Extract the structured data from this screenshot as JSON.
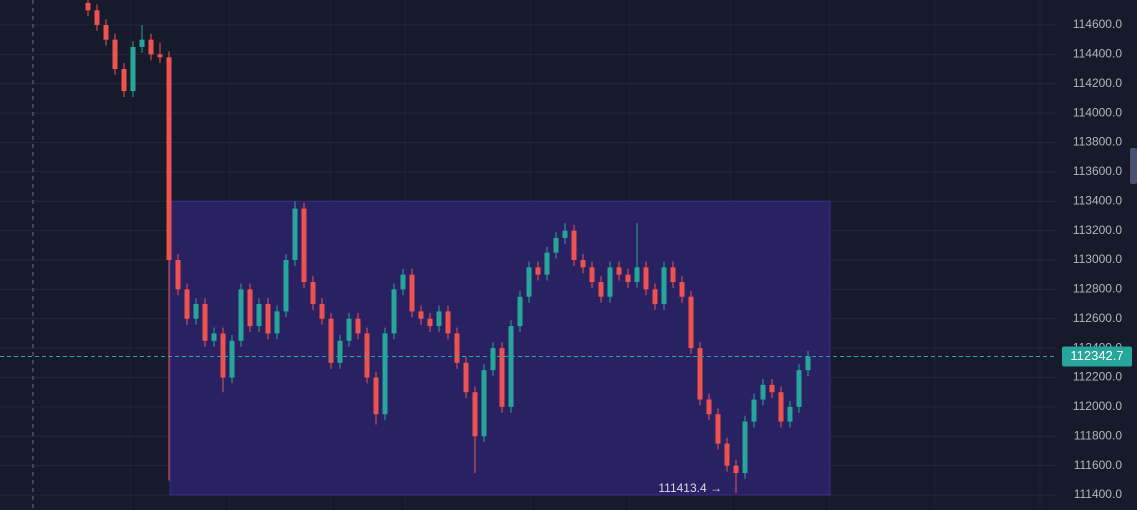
{
  "chart_data": {
    "type": "candlestick",
    "up_color": "#26a69a",
    "down_color": "#ef5350",
    "ylim": [
      111298,
      114770
    ],
    "yticks": [
      {
        "value": 114600,
        "label": "114600.0"
      },
      {
        "value": 114400,
        "label": "114400.0"
      },
      {
        "value": 114200,
        "label": "114200.0"
      },
      {
        "value": 114000,
        "label": "114000.0"
      },
      {
        "value": 113800,
        "label": "113800.0"
      },
      {
        "value": 113600,
        "label": "113600.0"
      },
      {
        "value": 113400,
        "label": "113400.0"
      },
      {
        "value": 113200,
        "label": "113200.0"
      },
      {
        "value": 113000,
        "label": "113000.0"
      },
      {
        "value": 112800,
        "label": "112800.0"
      },
      {
        "value": 112600,
        "label": "112600.0"
      },
      {
        "value": 112400,
        "label": "112400.0"
      },
      {
        "value": 112200,
        "label": "112200.0"
      },
      {
        "value": 112000,
        "label": "112000.0"
      },
      {
        "value": 111800,
        "label": "111800.0"
      },
      {
        "value": 111600,
        "label": "111600.0"
      },
      {
        "value": 111400,
        "label": "111400.0"
      }
    ],
    "grid": true,
    "box": {
      "top": 113400,
      "bottom": 111400,
      "color": "#2a2163"
    },
    "last_price": {
      "value": 112342.7,
      "label": "112342.7"
    },
    "low_label": {
      "value": 111413.4,
      "label": "111413.4 →"
    },
    "candles": [
      [
        114750,
        114790,
        114660,
        114700
      ],
      [
        114700,
        114740,
        114560,
        114600
      ],
      [
        114600,
        114640,
        114460,
        114500
      ],
      [
        114500,
        114540,
        114260,
        114300
      ],
      [
        114300,
        114340,
        114110,
        114150
      ],
      [
        114150,
        114490,
        114110,
        114450
      ],
      [
        114450,
        114600,
        114410,
        114500
      ],
      [
        114500,
        114540,
        114360,
        114400
      ],
      [
        114400,
        114480,
        114340,
        114380
      ],
      [
        114380,
        114420,
        111500,
        113000
      ],
      [
        113000,
        113040,
        112760,
        112800
      ],
      [
        112800,
        112840,
        112560,
        112600
      ],
      [
        112600,
        112740,
        112560,
        112700
      ],
      [
        112700,
        112740,
        112410,
        112450
      ],
      [
        112450,
        112540,
        112410,
        112500
      ],
      [
        112500,
        112540,
        112100,
        112200
      ],
      [
        112200,
        112490,
        112160,
        112450
      ],
      [
        112450,
        112840,
        112410,
        112800
      ],
      [
        112800,
        112840,
        112510,
        112550
      ],
      [
        112550,
        112740,
        112510,
        112700
      ],
      [
        112700,
        112740,
        112460,
        112500
      ],
      [
        112500,
        112690,
        112460,
        112650
      ],
      [
        112650,
        113040,
        112610,
        113000
      ],
      [
        113000,
        113400,
        112960,
        113350
      ],
      [
        113350,
        113390,
        112810,
        112850
      ],
      [
        112850,
        112890,
        112660,
        112700
      ],
      [
        112700,
        112740,
        112560,
        112600
      ],
      [
        112600,
        112640,
        112260,
        112300
      ],
      [
        112300,
        112490,
        112260,
        112450
      ],
      [
        112450,
        112640,
        112410,
        112600
      ],
      [
        112600,
        112640,
        112460,
        112500
      ],
      [
        112500,
        112540,
        112160,
        112200
      ],
      [
        112200,
        112240,
        111880,
        111950
      ],
      [
        111950,
        112540,
        111910,
        112500
      ],
      [
        112500,
        112840,
        112460,
        112800
      ],
      [
        112800,
        112940,
        112760,
        112900
      ],
      [
        112900,
        112940,
        112610,
        112650
      ],
      [
        112650,
        112690,
        112560,
        112600
      ],
      [
        112600,
        112640,
        112510,
        112550
      ],
      [
        112550,
        112690,
        112510,
        112650
      ],
      [
        112650,
        112690,
        112460,
        112500
      ],
      [
        112500,
        112540,
        112260,
        112300
      ],
      [
        112300,
        112340,
        112060,
        112100
      ],
      [
        112100,
        112140,
        111550,
        111800
      ],
      [
        111800,
        112290,
        111760,
        112250
      ],
      [
        112250,
        112440,
        112210,
        112400
      ],
      [
        112400,
        112440,
        111960,
        112000
      ],
      [
        112000,
        112590,
        111960,
        112550
      ],
      [
        112550,
        112790,
        112510,
        112750
      ],
      [
        112750,
        112990,
        112710,
        112950
      ],
      [
        112950,
        112990,
        112860,
        112900
      ],
      [
        112900,
        113090,
        112860,
        113050
      ],
      [
        113050,
        113190,
        113010,
        113150
      ],
      [
        113150,
        113250,
        113110,
        113200
      ],
      [
        113200,
        113240,
        112960,
        113000
      ],
      [
        113000,
        113040,
        112910,
        112950
      ],
      [
        112950,
        112990,
        112810,
        112850
      ],
      [
        112850,
        112890,
        112710,
        112750
      ],
      [
        112750,
        112990,
        112710,
        112950
      ],
      [
        112950,
        112990,
        112860,
        112900
      ],
      [
        112900,
        112940,
        112810,
        112850
      ],
      [
        112850,
        113250,
        112810,
        112950
      ],
      [
        112950,
        112990,
        112760,
        112800
      ],
      [
        112800,
        112840,
        112660,
        112700
      ],
      [
        112700,
        112990,
        112660,
        112950
      ],
      [
        112950,
        112990,
        112810,
        112850
      ],
      [
        112850,
        112890,
        112710,
        112750
      ],
      [
        112750,
        112790,
        112360,
        112400
      ],
      [
        112400,
        112440,
        112010,
        112050
      ],
      [
        112050,
        112090,
        111910,
        111950
      ],
      [
        111950,
        111990,
        111710,
        111750
      ],
      [
        111750,
        111790,
        111560,
        111600
      ],
      [
        111600,
        111640,
        111413.4,
        111550
      ],
      [
        111550,
        111940,
        111510,
        111900
      ],
      [
        111900,
        112090,
        111860,
        112050
      ],
      [
        112050,
        112190,
        112010,
        112150
      ],
      [
        112150,
        112190,
        112060,
        112100
      ],
      [
        112100,
        112140,
        111860,
        111900
      ],
      [
        111900,
        112040,
        111860,
        112000
      ],
      [
        112000,
        112290,
        111960,
        112250
      ],
      [
        112250,
        112380,
        112210,
        112342.7
      ]
    ]
  }
}
